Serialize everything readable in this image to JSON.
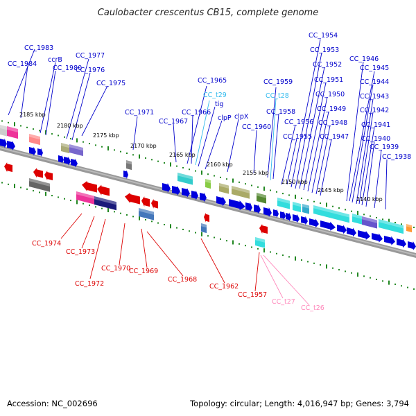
{
  "title": "Caulobacter crescentus CB15, complete genome",
  "footer": {
    "accession": "Accession: NC_002696",
    "summary": "Topology: circular; Length: 4,016,947 bp; Genes: 3,794"
  },
  "kbp_markers": [
    "2185 kbp",
    "2180 kbp",
    "2175 kbp",
    "2170 kbp",
    "2165 kbp",
    "2160 kbp",
    "2155 kbp",
    "2150 kbp",
    "2145 kbp",
    "2140 kbp"
  ],
  "colors": {
    "plus_gene": "#0000dd",
    "minus_gene": "#dd0000",
    "trna_plus": "#33bbee",
    "trna_minus": "#ff88bb",
    "tick": "#228822",
    "backbone": "#888888"
  },
  "labels_top": [
    {
      "text": "CC_1983",
      "color": "#0000cc"
    },
    {
      "text": "CC_1984",
      "color": "#0000cc"
    },
    {
      "text": "ccrB",
      "color": "#0000cc"
    },
    {
      "text": "CC_1980",
      "color": "#0000cc"
    },
    {
      "text": "CC_1977",
      "color": "#0000cc"
    },
    {
      "text": "CC_1976",
      "color": "#0000cc"
    },
    {
      "text": "CC_1975",
      "color": "#0000cc"
    },
    {
      "text": "CC_1971",
      "color": "#0000cc"
    },
    {
      "text": "CC_1965",
      "color": "#0000cc"
    },
    {
      "text": "CC_t29",
      "color": "#33bbee"
    },
    {
      "text": "tig",
      "color": "#0000cc"
    },
    {
      "text": "CC_1966",
      "color": "#0000cc"
    },
    {
      "text": "clpP",
      "color": "#0000cc"
    },
    {
      "text": "clpX",
      "color": "#0000cc"
    },
    {
      "text": "CC_1967",
      "color": "#0000cc"
    },
    {
      "text": "CC_1959",
      "color": "#0000cc"
    },
    {
      "text": "CC_t28",
      "color": "#33bbee"
    },
    {
      "text": "CC_1958",
      "color": "#0000cc"
    },
    {
      "text": "CC_1960",
      "color": "#0000cc"
    },
    {
      "text": "CC_1956",
      "color": "#0000cc"
    },
    {
      "text": "CC_1955",
      "color": "#0000cc"
    },
    {
      "text": "CC_1954",
      "color": "#0000cc"
    },
    {
      "text": "CC_1953",
      "color": "#0000cc"
    },
    {
      "text": "CC_1952",
      "color": "#0000cc"
    },
    {
      "text": "CC_1951",
      "color": "#0000cc"
    },
    {
      "text": "CC_1950",
      "color": "#0000cc"
    },
    {
      "text": "CC_1949",
      "color": "#0000cc"
    },
    {
      "text": "CC_1948",
      "color": "#0000cc"
    },
    {
      "text": "CC_1947",
      "color": "#0000cc"
    },
    {
      "text": "CC_1946",
      "color": "#0000cc"
    },
    {
      "text": "CC_1945",
      "color": "#0000cc"
    },
    {
      "text": "CC_1944",
      "color": "#0000cc"
    },
    {
      "text": "CC_1943",
      "color": "#0000cc"
    },
    {
      "text": "CC_1942",
      "color": "#0000cc"
    },
    {
      "text": "CC_1941",
      "color": "#0000cc"
    },
    {
      "text": "CC_1940",
      "color": "#0000cc"
    },
    {
      "text": "CC_1939",
      "color": "#0000cc"
    },
    {
      "text": "CC_1938",
      "color": "#0000cc"
    }
  ],
  "labels_bottom": [
    {
      "text": "CC_1974",
      "color": "#dd0000"
    },
    {
      "text": "CC_1973",
      "color": "#dd0000"
    },
    {
      "text": "CC_1972",
      "color": "#dd0000"
    },
    {
      "text": "CC_1970",
      "color": "#dd0000"
    },
    {
      "text": "CC_1969",
      "color": "#dd0000"
    },
    {
      "text": "CC_1968",
      "color": "#dd0000"
    },
    {
      "text": "CC_1962",
      "color": "#dd0000"
    },
    {
      "text": "CC_1957",
      "color": "#dd0000"
    },
    {
      "text": "CC_t27",
      "color": "#ff88bb"
    },
    {
      "text": "CC_t26",
      "color": "#ff88bb"
    }
  ]
}
